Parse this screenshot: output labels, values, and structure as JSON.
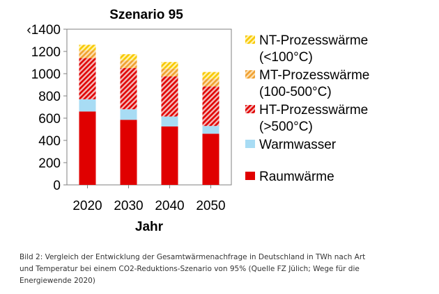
{
  "chart_data": {
    "type": "bar",
    "stacked": true,
    "title": "Szenario 95",
    "xlabel": "Jahr",
    "ylabel": "",
    "categories": [
      "2020",
      "2030",
      "2040",
      "2050"
    ],
    "ylim": [
      0,
      1400
    ],
    "yticks": [
      0,
      200,
      400,
      600,
      800,
      1000,
      1200,
      1400
    ],
    "ytick_labels": [
      "0",
      "200",
      "400",
      "600",
      "800",
      "1000",
      "1200",
      "‹1400"
    ],
    "grid": false,
    "legend_position": "right",
    "series": [
      {
        "name": "Raumwärme",
        "values": [
          660,
          585,
          525,
          460
        ],
        "color": "#e00000",
        "pattern": "solid"
      },
      {
        "name": "Warmwasser",
        "values": [
          110,
          95,
          90,
          70
        ],
        "color": "#a8dcf4",
        "pattern": "solid"
      },
      {
        "name": "HT-Prozesswärme (>500°C)",
        "values": [
          370,
          370,
          360,
          355
        ],
        "color": "#e00000",
        "pattern": "hatch"
      },
      {
        "name": "MT-Prozesswärme (100-500°C)",
        "values": [
          70,
          70,
          70,
          70
        ],
        "color": "#f0a030",
        "pattern": "hatch"
      },
      {
        "name": "NT-Prozesswärme (<100°C)",
        "values": [
          50,
          55,
          60,
          60
        ],
        "color": "#f8c800",
        "pattern": "hatch"
      }
    ],
    "legend": [
      {
        "lines": [
          "NT-Prozesswärme",
          "(<100°C)"
        ],
        "series": 4
      },
      {
        "lines": [
          "MT-Prozesswärme",
          "(100-500°C)"
        ],
        "series": 3
      },
      {
        "lines": [
          "HT-Prozesswärme",
          "(>500°C)"
        ],
        "series": 2
      },
      {
        "lines": [
          "Warmwasser"
        ],
        "series": 1
      },
      {
        "lines": [
          "Raumwärme"
        ],
        "series": 0
      }
    ]
  },
  "caption": {
    "lines": [
      "Bild 2: Vergleich der Entwicklung der Gesamtwärmenachfrage in Deutschland in TWh nach Art",
      "und Temperatur bei einem CO2-Reduktions-Szenario von 95% (Quelle FZ Jülich; Wege für die",
      "Energiewende 2020)"
    ]
  }
}
